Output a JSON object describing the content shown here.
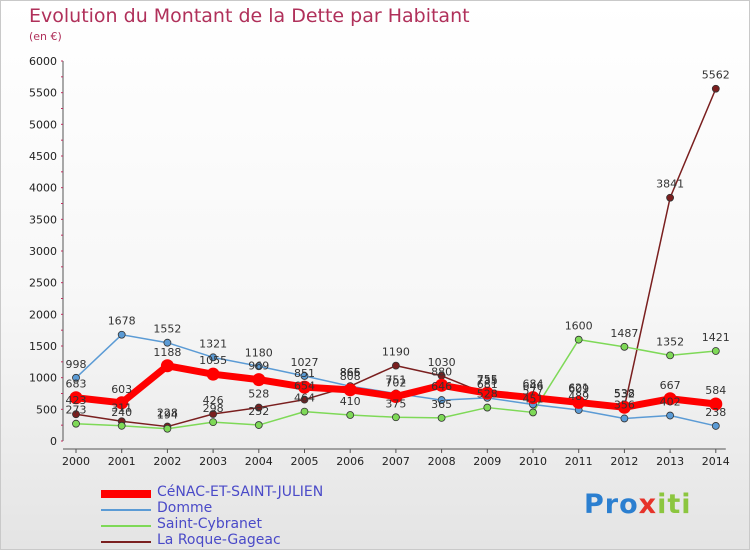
{
  "chart_data": {
    "type": "line",
    "title": "Evolution du Montant de la Dette par Habitant",
    "subtitle": "(en €)",
    "categories": [
      "2000",
      "2001",
      "2002",
      "2003",
      "2004",
      "2005",
      "2006",
      "2007",
      "2008",
      "2009",
      "2010",
      "2011",
      "2012",
      "2013",
      "2014"
    ],
    "ylim": [
      0,
      6000
    ],
    "yticks": [
      "0",
      "500",
      "1000",
      "1500",
      "2000",
      "2500",
      "3000",
      "3500",
      "4000",
      "4500",
      "5000",
      "5500",
      "6000"
    ],
    "grid": false,
    "legend_position": "bottom-left",
    "series": [
      {
        "name": "CéNAC-ET-SAINT-JULIEN",
        "color": "#ff0000",
        "values": [
          683,
          603,
          1188,
          1055,
          969,
          851,
          808,
          702,
          880,
          755,
          684,
          609,
          532,
          667,
          584
        ]
      },
      {
        "name": "Domme",
        "color": "#5b9bd5",
        "values": [
          998,
          1678,
          1552,
          1321,
          1180,
          1027,
          865,
          751,
          646,
          681,
          577,
          489,
          356,
          402,
          238
        ]
      },
      {
        "name": "Saint-Cybranet",
        "color": "#7ed957",
        "values": [
          273,
          240,
          194,
          298,
          252,
          464,
          410,
          375,
          365,
          528,
          451,
          1600,
          1487,
          1352,
          1421
        ]
      },
      {
        "name": "La Roque-Gageac",
        "color": "#7a1f1f",
        "values": [
          423,
          311,
          228,
          426,
          528,
          654,
          866,
          1190,
          1030,
          735,
          646,
          621,
          538,
          3841,
          5562
        ]
      }
    ]
  },
  "logo": {
    "text_parts": [
      "Pro",
      "x",
      "iti"
    ]
  }
}
